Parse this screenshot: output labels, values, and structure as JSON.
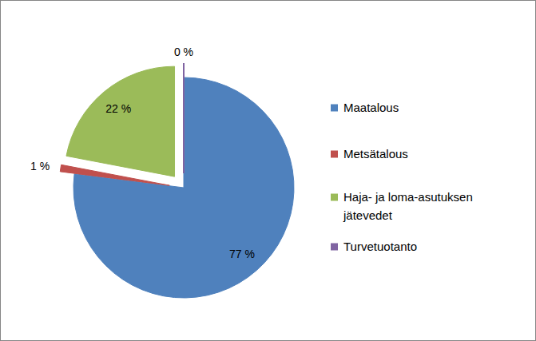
{
  "chart_data": {
    "type": "pie",
    "categories": [
      "Maatalous",
      "Metsätalous",
      "Haja- ja loma-asutuksen jätevedet",
      "Turvetuotanto"
    ],
    "values": [
      77,
      1,
      22,
      0
    ],
    "value_labels": [
      "77 %",
      "1 %",
      "22 %",
      "0 %"
    ],
    "colors": [
      "#4f81bd",
      "#c0504d",
      "#9bbb59",
      "#8064a2"
    ],
    "data_labels": true,
    "legend": "right"
  }
}
